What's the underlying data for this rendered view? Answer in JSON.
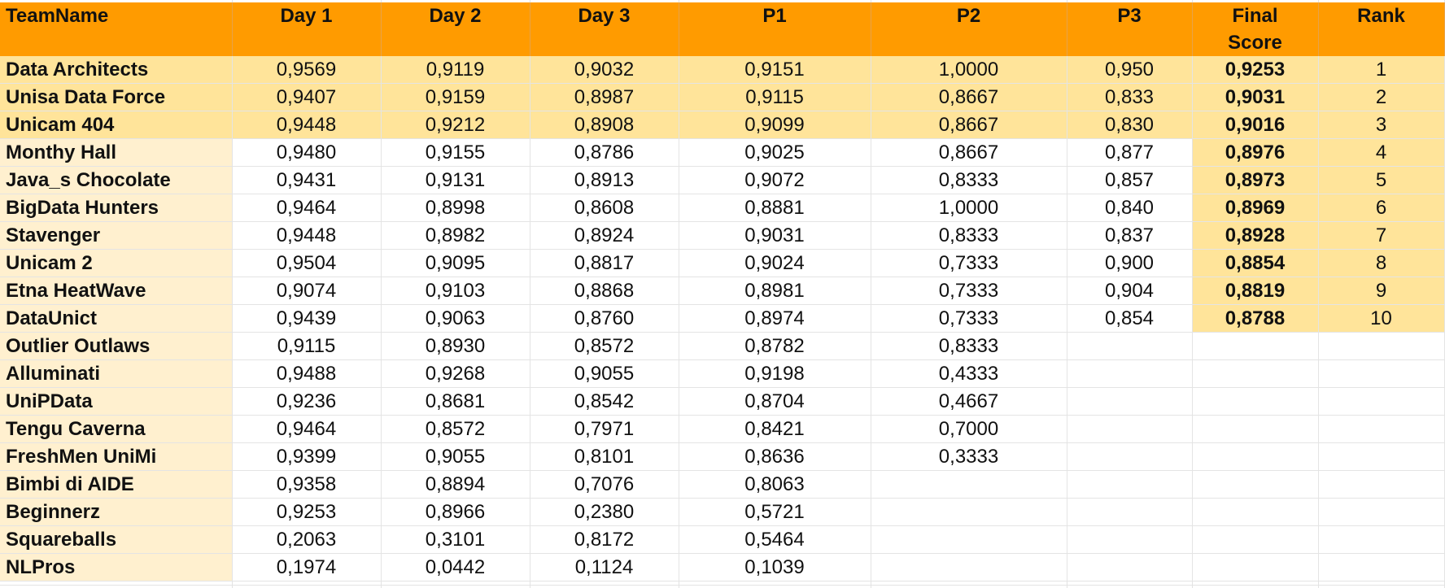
{
  "headers": [
    "TeamName",
    "Day 1",
    "Day 2",
    "Day 3",
    "P1",
    "P2",
    "P3",
    "Final\nScore",
    "Rank"
  ],
  "colors": {
    "header": "#ff9b00",
    "highlight": "#ffe49a",
    "team_bg": "#fff0cf",
    "grid": "#e3e3e3"
  },
  "rows": [
    {
      "team": "Data Architects",
      "day1": "0,9569",
      "day2": "0,9119",
      "day3": "0,9032",
      "p1": "0,9151",
      "p2": "1,0000",
      "p3": "0,950",
      "final": "0,9253",
      "rank": "1"
    },
    {
      "team": "Unisa Data Force",
      "day1": "0,9407",
      "day2": "0,9159",
      "day3": "0,8987",
      "p1": "0,9115",
      "p2": "0,8667",
      "p3": "0,833",
      "final": "0,9031",
      "rank": "2"
    },
    {
      "team": "Unicam 404",
      "day1": "0,9448",
      "day2": "0,9212",
      "day3": "0,8908",
      "p1": "0,9099",
      "p2": "0,8667",
      "p3": "0,830",
      "final": "0,9016",
      "rank": "3"
    },
    {
      "team": "Monthy Hall",
      "day1": "0,9480",
      "day2": "0,9155",
      "day3": "0,8786",
      "p1": "0,9025",
      "p2": "0,8667",
      "p3": "0,877",
      "final": "0,8976",
      "rank": "4"
    },
    {
      "team": "Java_s Chocolate",
      "day1": "0,9431",
      "day2": "0,9131",
      "day3": "0,8913",
      "p1": "0,9072",
      "p2": "0,8333",
      "p3": "0,857",
      "final": "0,8973",
      "rank": "5"
    },
    {
      "team": "BigData Hunters",
      "day1": "0,9464",
      "day2": "0,8998",
      "day3": "0,8608",
      "p1": "0,8881",
      "p2": "1,0000",
      "p3": "0,840",
      "final": "0,8969",
      "rank": "6"
    },
    {
      "team": "Stavenger",
      "day1": "0,9448",
      "day2": "0,8982",
      "day3": "0,8924",
      "p1": "0,9031",
      "p2": "0,8333",
      "p3": "0,837",
      "final": "0,8928",
      "rank": "7"
    },
    {
      "team": "Unicam 2",
      "day1": "0,9504",
      "day2": "0,9095",
      "day3": "0,8817",
      "p1": "0,9024",
      "p2": "0,7333",
      "p3": "0,900",
      "final": "0,8854",
      "rank": "8"
    },
    {
      "team": "Etna HeatWave",
      "day1": "0,9074",
      "day2": "0,9103",
      "day3": "0,8868",
      "p1": "0,8981",
      "p2": "0,7333",
      "p3": "0,904",
      "final": "0,8819",
      "rank": "9"
    },
    {
      "team": "DataUnict",
      "day1": "0,9439",
      "day2": "0,9063",
      "day3": "0,8760",
      "p1": "0,8974",
      "p2": "0,7333",
      "p3": "0,854",
      "final": "0,8788",
      "rank": "10"
    },
    {
      "team": "Outlier Outlaws",
      "day1": "0,9115",
      "day2": "0,8930",
      "day3": "0,8572",
      "p1": "0,8782",
      "p2": "0,8333",
      "p3": "",
      "final": "",
      "rank": ""
    },
    {
      "team": "Alluminati",
      "day1": "0,9488",
      "day2": "0,9268",
      "day3": "0,9055",
      "p1": "0,9198",
      "p2": "0,4333",
      "p3": "",
      "final": "",
      "rank": ""
    },
    {
      "team": "UniPData",
      "day1": "0,9236",
      "day2": "0,8681",
      "day3": "0,8542",
      "p1": "0,8704",
      "p2": "0,4667",
      "p3": "",
      "final": "",
      "rank": ""
    },
    {
      "team": "Tengu Caverna",
      "day1": "0,9464",
      "day2": "0,8572",
      "day3": "0,7971",
      "p1": "0,8421",
      "p2": "0,7000",
      "p3": "",
      "final": "",
      "rank": ""
    },
    {
      "team": "FreshMen UniMi",
      "day1": "0,9399",
      "day2": "0,9055",
      "day3": "0,8101",
      "p1": "0,8636",
      "p2": "0,3333",
      "p3": "",
      "final": "",
      "rank": ""
    },
    {
      "team": "Bimbi di AIDE",
      "day1": "0,9358",
      "day2": "0,8894",
      "day3": "0,7076",
      "p1": "0,8063",
      "p2": "",
      "p3": "",
      "final": "",
      "rank": ""
    },
    {
      "team": "Beginnerz",
      "day1": "0,9253",
      "day2": "0,8966",
      "day3": "0,2380",
      "p1": "0,5721",
      "p2": "",
      "p3": "",
      "final": "",
      "rank": ""
    },
    {
      "team": "Squareballs",
      "day1": "0,2063",
      "day2": "0,3101",
      "day3": "0,8172",
      "p1": "0,5464",
      "p2": "",
      "p3": "",
      "final": "",
      "rank": ""
    },
    {
      "team": "NLPros",
      "day1": "0,1974",
      "day2": "0,0442",
      "day3": "0,1124",
      "p1": "0,1039",
      "p2": "",
      "p3": "",
      "final": "",
      "rank": ""
    }
  ]
}
